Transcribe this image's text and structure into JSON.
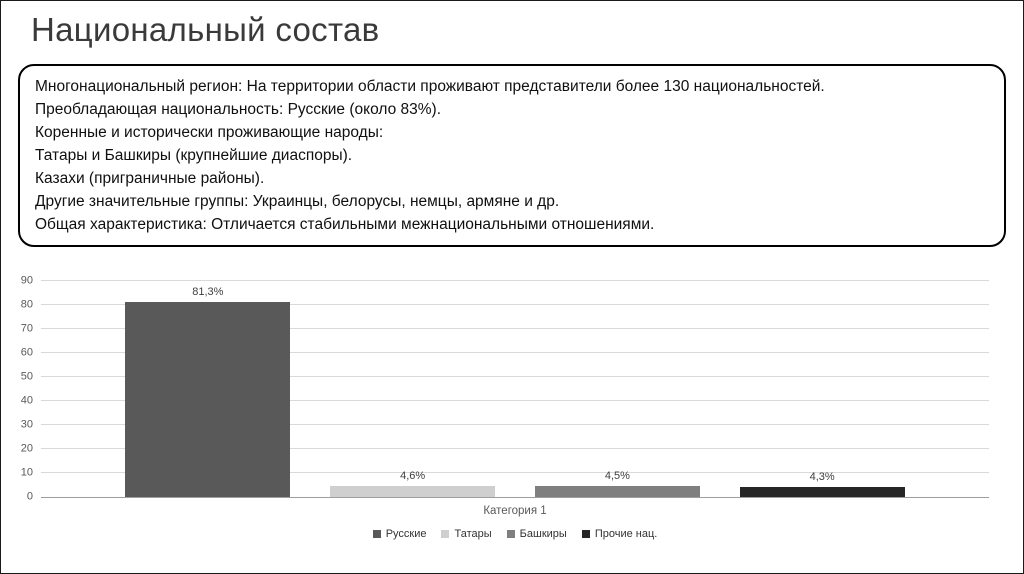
{
  "slide": {
    "title": "Национальный состав",
    "info_lines": [
      "Многонациональный регион: На территории области проживают представители более 130 национальностей.",
      "Преобладающая национальность: Русские (около 83%).",
      "Коренные и исторически проживающие народы:",
      "Татары и Башкиры (крупнейшие диаспоры).",
      "Казахи (приграничные районы).",
      "Другие значительные группы: Украинцы, белорусы, немцы, армяне и др.",
      "Общая характеристика: Отличается стабильными межнациональными отношениями."
    ]
  },
  "chart_data": {
    "type": "bar",
    "title": "",
    "categories": [
      "Категория 1"
    ],
    "series": [
      {
        "name": "Русские",
        "values": [
          81.3
        ],
        "label": "81,3%",
        "color": "#595959"
      },
      {
        "name": "Татары",
        "values": [
          4.6
        ],
        "label": "4,6%",
        "color": "#cfcfcf"
      },
      {
        "name": "Башкиры",
        "values": [
          4.5
        ],
        "label": "4,5%",
        "color": "#7f7f7f"
      },
      {
        "name": "Прочие нац.",
        "values": [
          4.3
        ],
        "label": "4,3%",
        "color": "#262626"
      }
    ],
    "xlabel": "Категория 1",
    "ylabel": "",
    "ylim": [
      0,
      90
    ],
    "yticks": [
      0,
      10,
      20,
      30,
      40,
      50,
      60,
      70,
      80,
      90
    ],
    "grid": true,
    "legend_position": "bottom"
  }
}
